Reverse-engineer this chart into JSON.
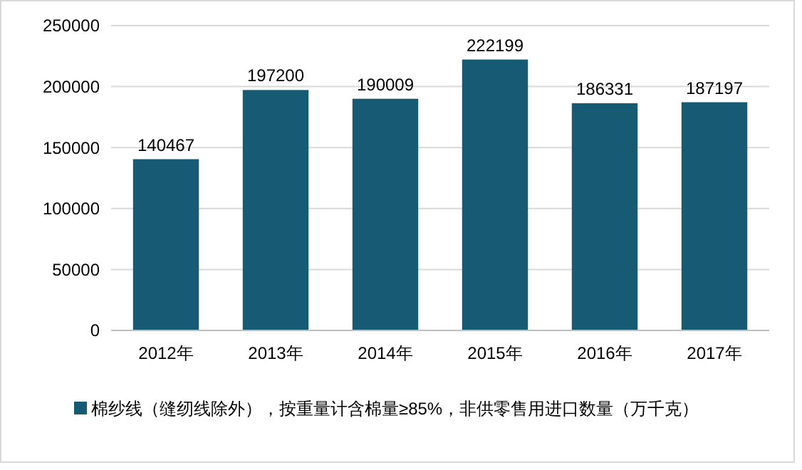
{
  "chart_data": {
    "type": "bar",
    "categories": [
      "2012年",
      "2013年",
      "2014年",
      "2015年",
      "2016年",
      "2017年"
    ],
    "series": [
      {
        "name": "棉纱线（缝纫线除外），按重量计含棉量≥85%，非供零售用进口数量（万千克）",
        "color": "#175a73",
        "values": [
          140467,
          197200,
          190009,
          222199,
          186331,
          187197
        ]
      }
    ],
    "ylim": [
      0,
      250000
    ],
    "yticks": [
      0,
      50000,
      100000,
      150000,
      200000,
      250000
    ],
    "grid": "y",
    "legend": "bottom",
    "data_labels": true
  }
}
